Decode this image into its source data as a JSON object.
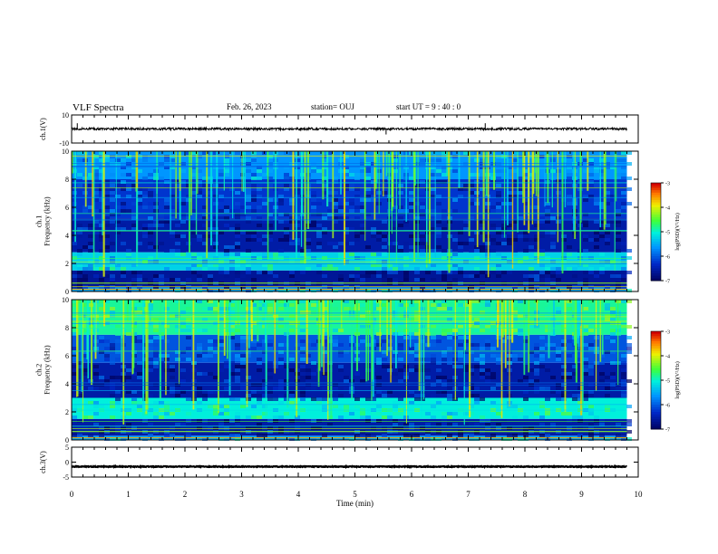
{
  "header": {
    "title": "VLF Spectra",
    "date": "Feb. 26, 2023",
    "station": "station= OUJ",
    "start": "start  UT  =   9  : 40 : 0"
  },
  "chart_data": [
    {
      "type": "line",
      "id": "ch1-waveform",
      "ylabel": "ch.1(V)",
      "ylim": [
        -10,
        10
      ],
      "y_ticks": [
        "10",
        "-10"
      ],
      "xlim": [
        0,
        10
      ],
      "series": [
        {
          "values_description": "waveform",
          "level": 0.1,
          "noise_amplitude": 0.8
        }
      ]
    },
    {
      "type": "heatmap",
      "id": "ch1-spectrogram",
      "ylabel": "ch.1\nFrequency (kHz)",
      "ylabel_lines": [
        "ch.1",
        "Frequency (kHz)"
      ],
      "ylim": [
        0,
        10
      ],
      "y_ticks": [
        "0",
        "2",
        "4",
        "6",
        "8",
        "10"
      ],
      "xlim": [
        0,
        10
      ],
      "colorbar": {
        "label": "log(PSD)(V²/Hz)",
        "range": [
          -7,
          -3
        ],
        "ticks": [
          "-3",
          "-4",
          "-5",
          "-6",
          "-7"
        ]
      },
      "bands_log_psd": [
        {
          "f_range": [
            0,
            0.3
          ],
          "value": -5.5
        },
        {
          "f_range": [
            0.3,
            1.5
          ],
          "value": -6.6
        },
        {
          "f_range": [
            1.5,
            2.8
          ],
          "value": -5.2
        },
        {
          "f_range": [
            2.8,
            5.2
          ],
          "value": -6.5
        },
        {
          "f_range": [
            5.2,
            8.0
          ],
          "value": -6.2
        },
        {
          "f_range": [
            8.0,
            10.0
          ],
          "value": -5.6
        }
      ],
      "data_end_min": 9.8
    },
    {
      "type": "heatmap",
      "id": "ch2-spectrogram",
      "ylabel": "ch.2\nFrequency (kHz)",
      "ylabel_lines": [
        "ch.2",
        "Frequency (kHz)"
      ],
      "ylim": [
        0,
        10
      ],
      "y_ticks": [
        "0",
        "2",
        "4",
        "6",
        "8",
        "10"
      ],
      "xlim": [
        0,
        10
      ],
      "colorbar": {
        "label": "log(PSD)(V²/Hz)",
        "range": [
          -7,
          -3
        ],
        "ticks": [
          "-3",
          "-4",
          "-5",
          "-6",
          "-7"
        ]
      },
      "bands_log_psd": [
        {
          "f_range": [
            0,
            0.3
          ],
          "value": -5.5
        },
        {
          "f_range": [
            0.3,
            1.5
          ],
          "value": -6.5
        },
        {
          "f_range": [
            1.5,
            3.0
          ],
          "value": -5.0
        },
        {
          "f_range": [
            3.0,
            5.5
          ],
          "value": -6.5
        },
        {
          "f_range": [
            5.5,
            7.5
          ],
          "value": -6.0
        },
        {
          "f_range": [
            7.5,
            10.0
          ],
          "value": -4.8
        }
      ],
      "data_end_min": 9.8
    },
    {
      "type": "line",
      "id": "ch3-waveform",
      "ylabel": "ch.3(V)",
      "ylim": [
        -5,
        5
      ],
      "y_ticks": [
        "5",
        "0",
        "-5"
      ],
      "xlim": [
        0,
        10
      ],
      "series": [
        {
          "values_description": "waveform",
          "level": -1.5,
          "noise_amplitude": 0.15
        }
      ]
    }
  ],
  "x_axis": {
    "label": "Time (min)",
    "ticks": [
      "0",
      "1",
      "2",
      "3",
      "4",
      "5",
      "6",
      "7",
      "8",
      "9",
      "10"
    ]
  }
}
